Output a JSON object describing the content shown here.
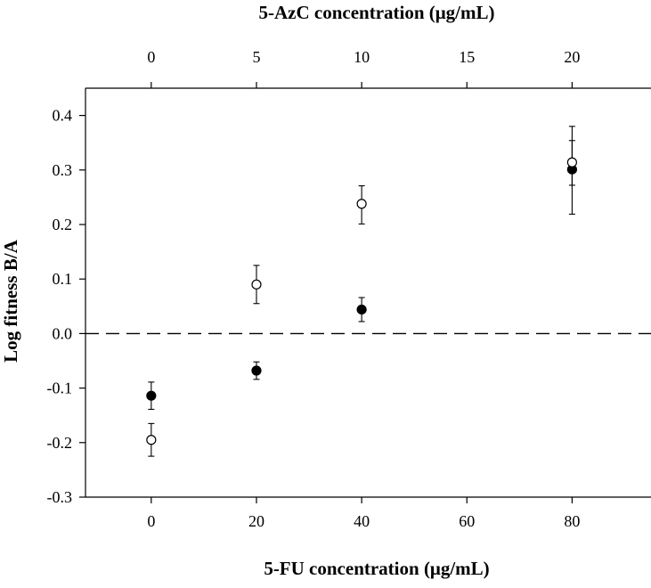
{
  "chart_data": {
    "type": "scatter",
    "title": "",
    "xlabel": "5-FU concentration (μg/mL)",
    "x2label": "5-AzC concentration (μg/mL)",
    "ylabel": "Log fitness B/A",
    "xlim": [
      -12.5,
      95
    ],
    "ylim": [
      -0.3,
      0.45
    ],
    "x_ticks": [
      0,
      20,
      40,
      60,
      80
    ],
    "x_tick_labels": [
      "0",
      "20",
      "40",
      "60",
      "80"
    ],
    "x2_ticks": [
      0,
      5,
      10,
      15,
      20
    ],
    "x2_tick_labels": [
      "0",
      "5",
      "10",
      "15",
      "20"
    ],
    "x2_to_x_factor": 4,
    "y_ticks": [
      -0.3,
      -0.2,
      -0.1,
      0.0,
      0.1,
      0.2,
      0.3,
      0.4
    ],
    "y_tick_labels": [
      "-0.3",
      "-0.2",
      "-0.1",
      "0.0",
      "0.1",
      "0.2",
      "0.3",
      "0.4"
    ],
    "reference_line": {
      "y": 0.0,
      "style": "dashed"
    },
    "grid": false,
    "legend": "none",
    "series": [
      {
        "marker": "filled-circle",
        "x": [
          0,
          20,
          40,
          80
        ],
        "y": [
          -0.114,
          -0.068,
          0.044,
          0.301
        ],
        "err_low": [
          0.025,
          0.016,
          0.022,
          0.082
        ],
        "err_high": [
          0.025,
          0.016,
          0.022,
          0.053
        ]
      },
      {
        "marker": "open-circle",
        "x": [
          0,
          20,
          40,
          80
        ],
        "y": [
          -0.195,
          0.09,
          0.238,
          0.314
        ],
        "err_low": [
          0.03,
          0.035,
          0.037,
          0.042
        ],
        "err_high": [
          0.03,
          0.035,
          0.033,
          0.066
        ]
      }
    ],
    "colors": {
      "axis": "#000000",
      "filled_marker": "#000000",
      "open_marker_fill": "#ffffff"
    }
  }
}
